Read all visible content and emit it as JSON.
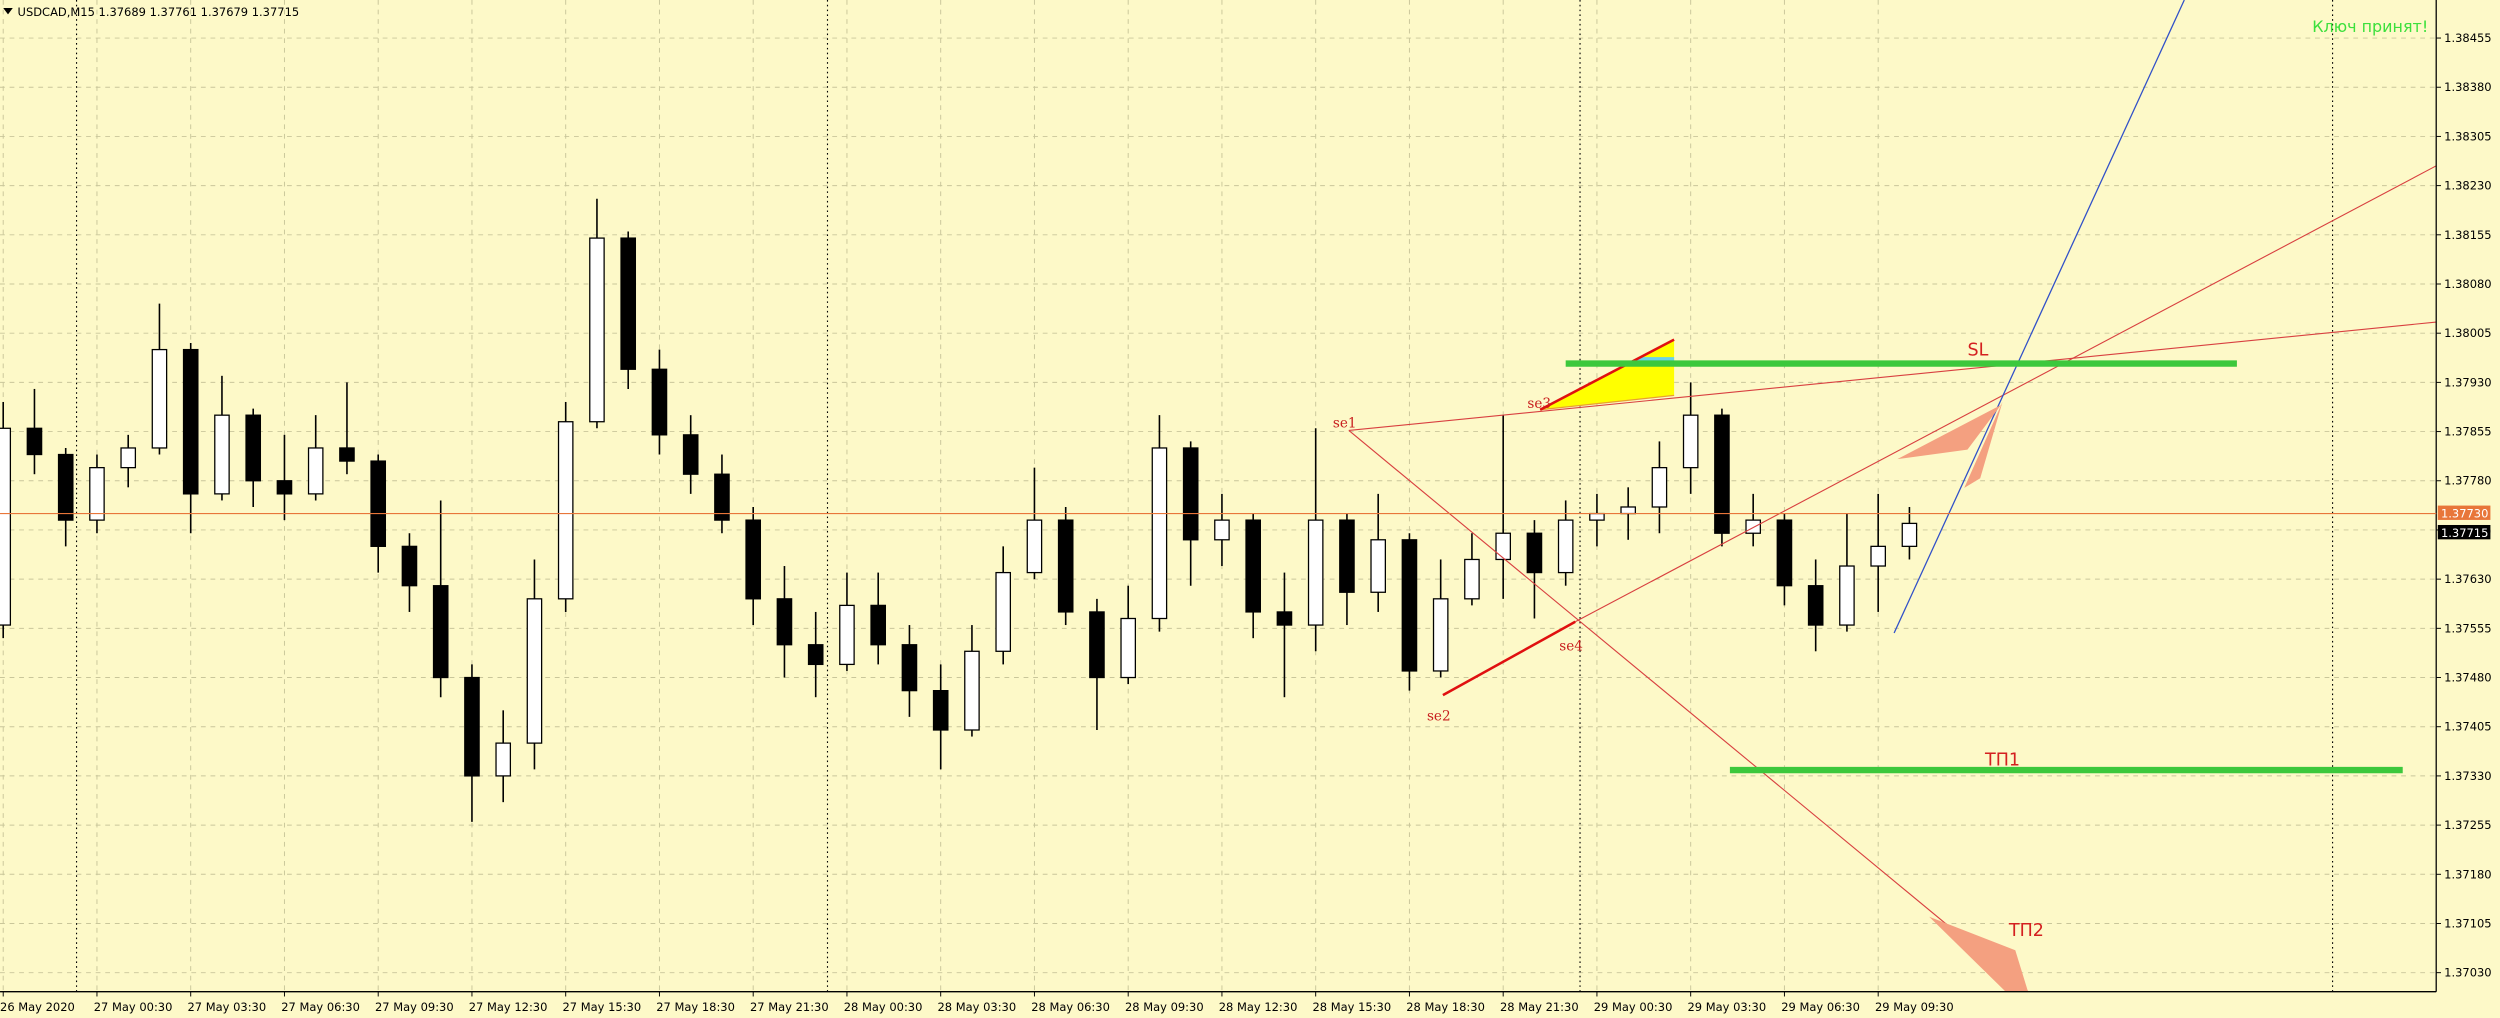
{
  "chart_data": {
    "type": "candlestick",
    "header": "USDCAD,M15  1.37689 1.37761 1.37679 1.37715",
    "notice": "Ключ принят!",
    "categories": [
      "26 May 2020",
      null,
      null,
      "27 May 00:30",
      null,
      null,
      "27 May 03:30",
      null,
      null,
      "27 May 06:30",
      null,
      null,
      "27 May 09:30",
      null,
      null,
      "27 May 12:30",
      null,
      null,
      "27 May 15:30",
      null,
      null,
      "27 May 18:30",
      null,
      null,
      "27 May 21:30",
      null,
      null,
      "28 May 00:30",
      null,
      null,
      "28 May 03:30",
      null,
      null,
      "28 May 06:30",
      null,
      null,
      "28 May 09:30",
      null,
      null,
      "28 May 12:30",
      null,
      null,
      "28 May 15:30",
      null,
      null,
      "28 May 18:30",
      null,
      null,
      "28 May 21:30",
      null,
      null,
      "29 May 00:30",
      null,
      null,
      "29 May 03:30",
      null,
      null,
      "29 May 06:30",
      null,
      null,
      "29 May 09:30",
      null
    ],
    "open": [
      1.3756,
      1.3786,
      1.3782,
      1.3772,
      1.378,
      1.3783,
      1.3798,
      1.3776,
      1.3788,
      1.3778,
      1.3776,
      1.3783,
      1.3781,
      1.3768,
      1.3762,
      1.3748,
      1.3733,
      1.3738,
      1.376,
      1.3787,
      1.3815,
      1.3795,
      1.3785,
      1.3779,
      1.3772,
      1.376,
      1.3753,
      1.375,
      1.3759,
      1.3753,
      1.3746,
      1.374,
      1.3752,
      1.3764,
      1.3772,
      1.3758,
      1.3748,
      1.3757,
      1.3783,
      1.3769,
      1.3772,
      1.3758,
      1.3756,
      1.3772,
      1.3761,
      1.3769,
      1.3749,
      1.376,
      1.3766,
      1.377,
      1.3764,
      1.3772,
      1.3773,
      1.3774,
      1.378,
      1.3788,
      1.377,
      1.3772,
      1.3762,
      1.3756,
      1.3765,
      1.3768
    ],
    "high": [
      1.379,
      1.3792,
      1.3783,
      1.3782,
      1.3785,
      1.3805,
      1.3799,
      1.3794,
      1.3789,
      1.3785,
      1.3788,
      1.3793,
      1.3782,
      1.377,
      1.3775,
      1.375,
      1.3743,
      1.3766,
      1.379,
      1.3821,
      1.3816,
      1.3798,
      1.3788,
      1.3782,
      1.3774,
      1.3765,
      1.3758,
      1.3764,
      1.3764,
      1.3756,
      1.375,
      1.3756,
      1.3768,
      1.378,
      1.3774,
      1.376,
      1.3762,
      1.3788,
      1.3784,
      1.3776,
      1.3773,
      1.3764,
      1.3786,
      1.3773,
      1.3776,
      1.377,
      1.3766,
      1.377,
      1.3788,
      1.3772,
      1.3775,
      1.3776,
      1.3777,
      1.3784,
      1.3793,
      1.3789,
      1.3776,
      1.3773,
      1.3766,
      1.3773,
      1.3776,
      1.3774
    ],
    "low": [
      1.3754,
      1.3779,
      1.3768,
      1.377,
      1.3777,
      1.3782,
      1.377,
      1.3775,
      1.3774,
      1.3772,
      1.3775,
      1.3779,
      1.3764,
      1.3758,
      1.3745,
      1.3726,
      1.3729,
      1.3734,
      1.3758,
      1.3786,
      1.3792,
      1.3782,
      1.3776,
      1.377,
      1.3756,
      1.3748,
      1.3745,
      1.3749,
      1.375,
      1.3742,
      1.3734,
      1.3739,
      1.375,
      1.3763,
      1.3756,
      1.374,
      1.3747,
      1.3755,
      1.3762,
      1.3765,
      1.3754,
      1.3745,
      1.3752,
      1.3756,
      1.3758,
      1.3746,
      1.3748,
      1.3759,
      1.376,
      1.3757,
      1.3762,
      1.3768,
      1.3769,
      1.377,
      1.3776,
      1.3768,
      1.3768,
      1.3759,
      1.3752,
      1.3755,
      1.3758,
      1.3766
    ],
    "close": [
      1.3786,
      1.3782,
      1.3772,
      1.378,
      1.3783,
      1.3798,
      1.3776,
      1.3788,
      1.3778,
      1.3776,
      1.3783,
      1.3781,
      1.3768,
      1.3762,
      1.3748,
      1.3733,
      1.3738,
      1.376,
      1.3787,
      1.3815,
      1.3795,
      1.3785,
      1.3779,
      1.3772,
      1.376,
      1.3753,
      1.375,
      1.3759,
      1.3753,
      1.3746,
      1.374,
      1.3752,
      1.3764,
      1.3772,
      1.3758,
      1.3748,
      1.3757,
      1.3783,
      1.3769,
      1.3772,
      1.3758,
      1.3756,
      1.3772,
      1.3761,
      1.3769,
      1.3749,
      1.376,
      1.3766,
      1.377,
      1.3764,
      1.3772,
      1.3773,
      1.3774,
      1.378,
      1.3788,
      1.377,
      1.3772,
      1.3762,
      1.3756,
      1.3765,
      1.3768,
      1.37715
    ],
    "ylim": [
      1.37001,
      1.38513
    ],
    "yticks": [
      1.38455,
      {
        "value": 1.3838,
        "label": "1.38380"
      },
      1.38305,
      {
        "value": 1.3823,
        "label": "1.38230"
      },
      1.38155,
      {
        "value": 1.3808,
        "label": "1.38080"
      },
      1.38005,
      {
        "value": 1.3793,
        "label": "1.37930"
      },
      1.37855,
      {
        "value": 1.3778,
        "label": "1.37780"
      },
      1.37705,
      {
        "value": 1.3763,
        "label": "1.37630"
      },
      1.37555,
      {
        "value": 1.3748,
        "label": "1.37480"
      },
      1.37405,
      {
        "value": 1.3733,
        "label": "1.37330"
      },
      1.37255,
      {
        "value": 1.3718,
        "label": "1.37180"
      },
      1.37105,
      {
        "value": 1.3703,
        "label": "1.37030"
      }
    ],
    "ask": {
      "value": 1.3773,
      "label": "1.37730"
    },
    "bid": 1.37715,
    "grid": true,
    "bull_color": "#ffffff",
    "bear_color": "#000000",
    "ask_color": "#e8763a",
    "annotations": {
      "se1": "se1",
      "se2": "se2",
      "se3": "se3",
      "se4": "se4",
      "sl": "SL",
      "tp1": "ТП1",
      "tp2": "ТП2"
    }
  }
}
